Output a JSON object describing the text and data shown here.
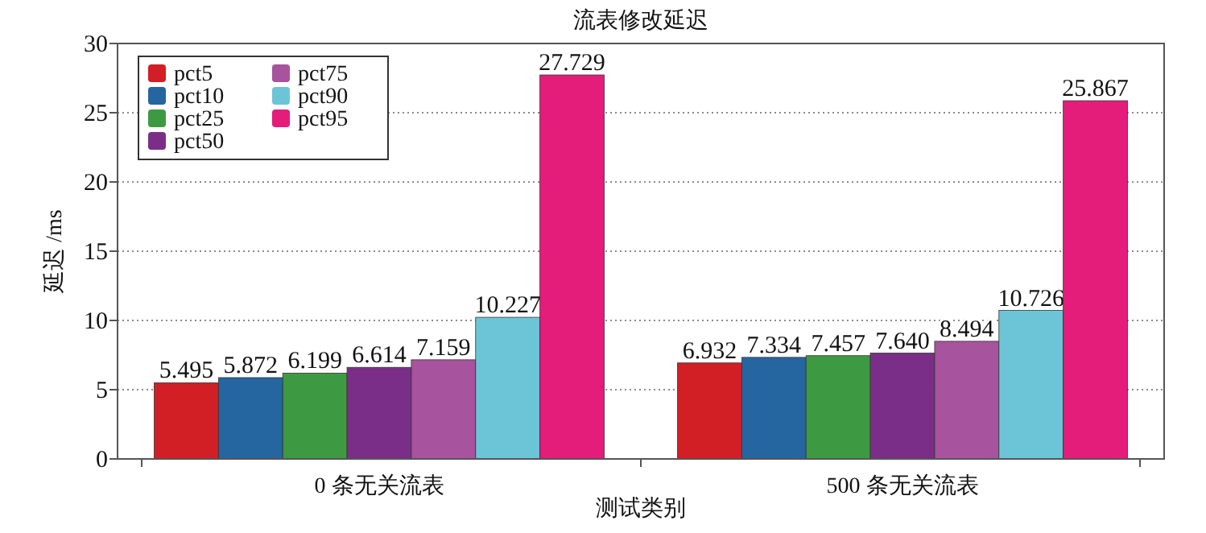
{
  "chart_data": {
    "type": "bar",
    "title": "流表修改延迟",
    "xlabel": "测试类别",
    "ylabel": "延迟 /ms",
    "categories": [
      "0 条无关流表",
      "500 条无关流表"
    ],
    "series": [
      {
        "name": "pct5",
        "color": "#d21f26",
        "values": [
          5.495,
          6.932
        ],
        "value_labels": [
          "5.495",
          "6.932"
        ]
      },
      {
        "name": "pct10",
        "color": "#2566a0",
        "values": [
          5.872,
          7.334
        ],
        "value_labels": [
          "5.872",
          "7.334"
        ]
      },
      {
        "name": "pct25",
        "color": "#3e9a42",
        "values": [
          6.199,
          7.457
        ],
        "value_labels": [
          "6.199",
          "7.457"
        ]
      },
      {
        "name": "pct50",
        "color": "#7b2e87",
        "values": [
          6.614,
          7.64
        ],
        "value_labels": [
          "6.614",
          "7.640"
        ]
      },
      {
        "name": "pct75",
        "color": "#a8539e",
        "values": [
          7.159,
          8.494
        ],
        "value_labels": [
          "7.159",
          "8.494"
        ]
      },
      {
        "name": "pct90",
        "color": "#6cc5d6",
        "values": [
          10.227,
          10.726
        ],
        "value_labels": [
          "10.227",
          "10.726"
        ]
      },
      {
        "name": "pct95",
        "color": "#e31d79",
        "values": [
          27.729,
          25.867
        ],
        "value_labels": [
          "27.729",
          "25.867"
        ]
      }
    ],
    "ylim": [
      0,
      30
    ],
    "yticks": [
      0,
      5,
      10,
      15,
      20,
      25,
      30
    ],
    "grid": "y",
    "legend": "top left"
  }
}
